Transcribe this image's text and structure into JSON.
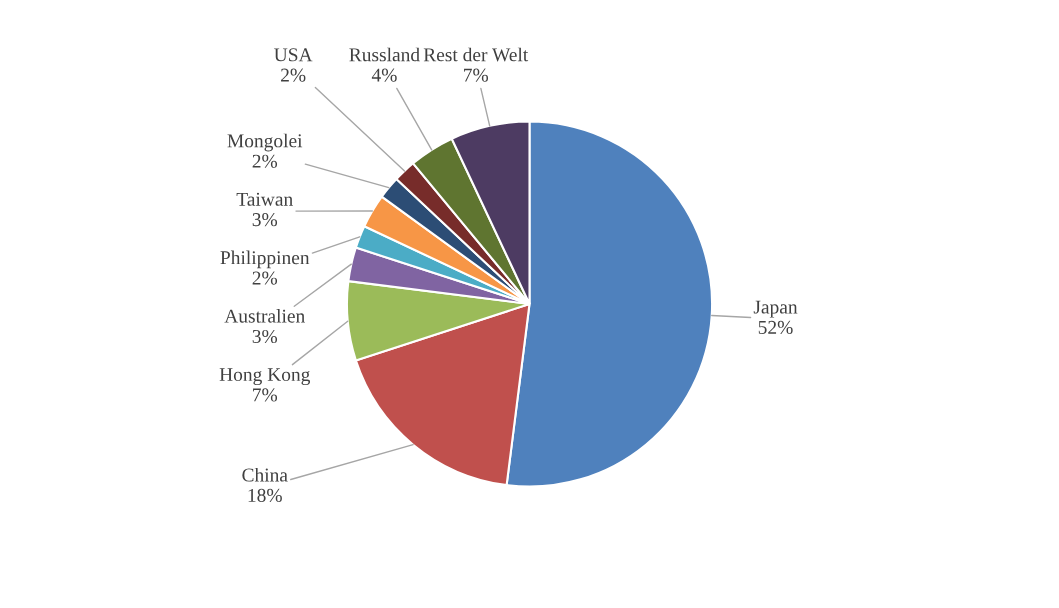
{
  "chart_data": {
    "type": "pie",
    "categories": [
      "Japan",
      "China",
      "Hong Kong",
      "Australien",
      "Philippinen",
      "Taiwan",
      "Mongolei",
      "USA",
      "Russland",
      "Rest der Welt"
    ],
    "values": [
      52,
      18,
      7,
      3,
      2,
      3,
      2,
      2,
      4,
      7
    ],
    "value_labels": [
      "52%",
      "18%",
      "7%",
      "3%",
      "2%",
      "3%",
      "2%",
      "2%",
      "4%",
      "7%"
    ],
    "colors": [
      "#4f81bd",
      "#c0504d",
      "#9bbb59",
      "#8064a2",
      "#4bacc6",
      "#f79646",
      "#2c4d75",
      "#772c2a",
      "#5f7530",
      "#4d3b62"
    ],
    "legend": false
  }
}
